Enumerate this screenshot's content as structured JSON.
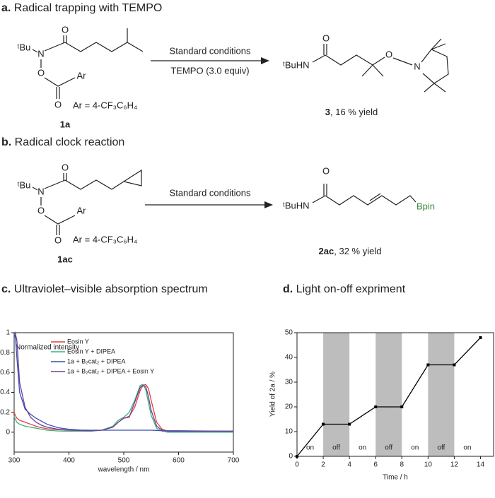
{
  "scheme_a": {
    "label": "a.",
    "title": "Radical trapping with TEMPO",
    "reactant_atoms": [
      "O",
      "ᵗBu",
      "N",
      "O",
      "O",
      "Ar"
    ],
    "ar_definition": "Ar = 4-CF₃C₆H₄",
    "reactant_id": "1a",
    "conditions": [
      "Standard conditions",
      "TEMPO (3.0 equiv)"
    ],
    "product_atoms": [
      "O",
      "ᵗBuHN",
      "O",
      "N"
    ],
    "product_id": "3",
    "product_yield": ", 16 % yield"
  },
  "scheme_b": {
    "label": "b.",
    "title": "Radical clock reaction",
    "reactant_atoms": [
      "O",
      "ᵗBu",
      "N",
      "O",
      "O",
      "Ar"
    ],
    "ar_definition": "Ar = 4-CF₃C₆H₄",
    "reactant_id": "1ac",
    "conditions": [
      "Standard conditions"
    ],
    "product_atoms": [
      "O",
      "ᵗBuHN",
      "Bpin"
    ],
    "product_id": "2ac",
    "product_yield": ", 32 % yield"
  },
  "chart_data": [
    {
      "type": "line",
      "label": "c.",
      "title": "Ultraviolet–visible absorption spectrum",
      "xlabel": "wavelength / nm",
      "ylabel": "Normalized intensity",
      "x": [
        300,
        302,
        305,
        310,
        320,
        330,
        340,
        350,
        360,
        380,
        400,
        420,
        440,
        460,
        480,
        490,
        500,
        510,
        520,
        530,
        535,
        540,
        545,
        550,
        560,
        570,
        580,
        600,
        650,
        700
      ],
      "series": [
        {
          "name": "Eosin Y",
          "color": "#e0403a",
          "values": [
            0.2,
            0.17,
            0.14,
            0.12,
            0.1,
            0.08,
            0.06,
            0.045,
            0.035,
            0.025,
            0.02,
            0.015,
            0.012,
            0.02,
            0.05,
            0.1,
            0.14,
            0.16,
            0.25,
            0.42,
            0.47,
            0.48,
            0.44,
            0.32,
            0.1,
            0.03,
            0.01,
            0.01,
            0.01,
            0.01
          ]
        },
        {
          "name": "Eosin Y + DIPEA",
          "color": "#3fae7c",
          "values": [
            0.16,
            0.13,
            0.1,
            0.08,
            0.06,
            0.05,
            0.04,
            0.03,
            0.02,
            0.012,
            0.01,
            0.01,
            0.01,
            0.02,
            0.06,
            0.12,
            0.15,
            0.2,
            0.32,
            0.47,
            0.48,
            0.43,
            0.3,
            0.17,
            0.04,
            0.01,
            0,
            0,
            0,
            0
          ]
        },
        {
          "name": "1a + B₂cat₂ + DIPEA",
          "color": "#3a4fb0",
          "values": [
            0.95,
            0.98,
            0.75,
            0.4,
            0.23,
            0.18,
            0.14,
            0.11,
            0.08,
            0.045,
            0.03,
            0.022,
            0.02,
            0.02,
            0.02,
            0.02,
            0.02,
            0.02,
            0.02,
            0.02,
            0.02,
            0.02,
            0.02,
            0.02,
            0.018,
            0.015,
            0.015,
            0.015,
            0.012,
            0.01
          ]
        },
        {
          "name": "1a + B₂cat₂ + DIPEA + Eosin Y",
          "color": "#6a3fa0",
          "values": [
            0.98,
            1.0,
            0.92,
            0.5,
            0.25,
            0.15,
            0.1,
            0.07,
            0.05,
            0.03,
            0.02,
            0.018,
            0.015,
            0.02,
            0.05,
            0.1,
            0.14,
            0.15,
            0.3,
            0.45,
            0.47,
            0.46,
            0.36,
            0.22,
            0.06,
            0.02,
            0.01,
            0.01,
            0.01,
            0.01
          ]
        }
      ],
      "xlim": [
        300,
        700
      ],
      "ylim": [
        -0.2,
        1
      ],
      "xticks": [
        300,
        400,
        500,
        600,
        700
      ],
      "yticks": [
        0,
        0.2,
        0.4,
        0.6,
        0.8,
        1
      ],
      "legend": "upper left"
    },
    {
      "type": "line",
      "markers": true,
      "label": "d.",
      "title": "Light on-off expriment",
      "xlabel": "Time / h",
      "ylabel": "Yield of 2a / %",
      "x": [
        0,
        2,
        4,
        6,
        8,
        10,
        12,
        14
      ],
      "values": [
        0,
        13,
        13,
        20,
        20,
        37,
        37,
        48
      ],
      "color": "#000000",
      "xlim": [
        0,
        15
      ],
      "ylim": [
        0,
        50
      ],
      "xticks": [
        0,
        2,
        4,
        6,
        8,
        10,
        12,
        14
      ],
      "yticks": [
        0,
        10,
        20,
        30,
        40,
        50
      ],
      "shade_color": "#bdbdbd",
      "phases": [
        {
          "label": "on",
          "from": 0,
          "to": 2
        },
        {
          "label": "off",
          "from": 2,
          "to": 4,
          "shaded": true
        },
        {
          "label": "on",
          "from": 4,
          "to": 6
        },
        {
          "label": "off",
          "from": 6,
          "to": 8,
          "shaded": true
        },
        {
          "label": "on",
          "from": 8,
          "to": 10
        },
        {
          "label": "off",
          "from": 10,
          "to": 12,
          "shaded": true
        },
        {
          "label": "on",
          "from": 12,
          "to": 14
        }
      ]
    }
  ]
}
